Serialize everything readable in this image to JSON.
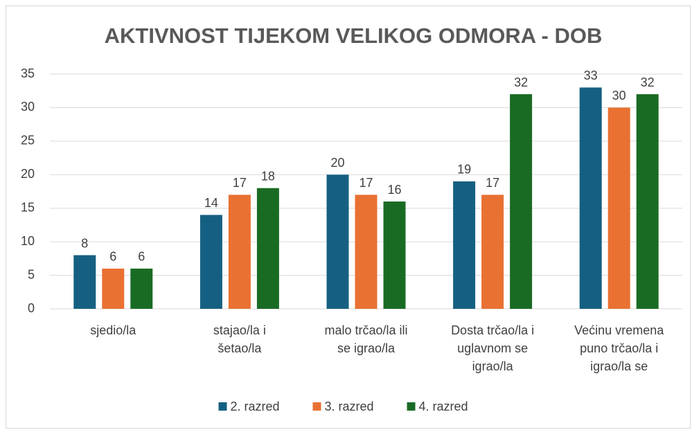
{
  "chart_data": {
    "type": "bar",
    "title": "AKTIVNOST TIJEKOM VELIKOG ODMORA - DOB",
    "categories": [
      [
        "sjedio/la"
      ],
      [
        "stajao/la i",
        "šetao/la"
      ],
      [
        "malo trčao/la ili",
        "se igrao/la"
      ],
      [
        "Dosta trčao/la i",
        "uglavnom se",
        "igrao/la"
      ],
      [
        "Većinu vremena",
        "puno trčao/la i",
        "igrao/la se"
      ]
    ],
    "series": [
      {
        "name": "2. razred",
        "color": "#156082",
        "values": [
          8,
          14,
          20,
          19,
          33
        ]
      },
      {
        "name": "3. razred",
        "color": "#e97132",
        "values": [
          6,
          17,
          17,
          17,
          30
        ]
      },
      {
        "name": "4. razred",
        "color": "#196b24",
        "values": [
          6,
          18,
          16,
          32,
          32
        ]
      }
    ],
    "ylim": [
      0,
      35
    ],
    "yticks": [
      0,
      5,
      10,
      15,
      20,
      25,
      30,
      35
    ],
    "grid": true,
    "legend": "bottom"
  }
}
